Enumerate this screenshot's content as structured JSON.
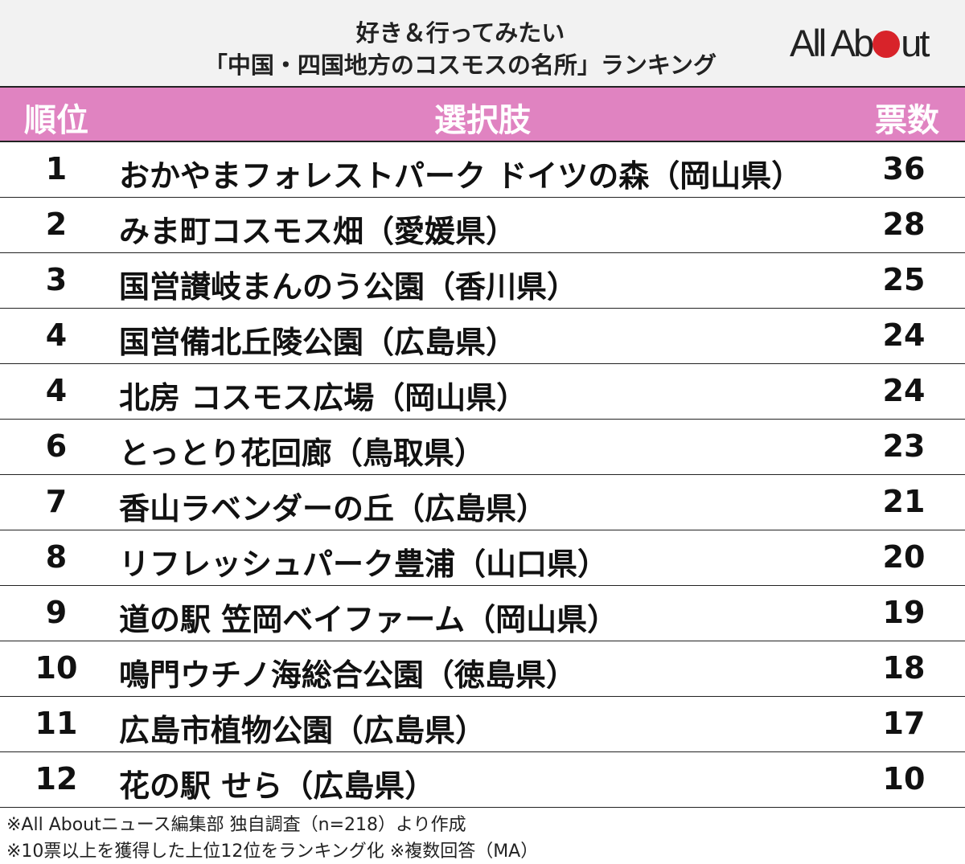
{
  "title": {
    "line1": "好き＆行ってみたい",
    "line2": "「中国・四国地方のコスモスの名所」ランキング"
  },
  "logo": {
    "text": "All About",
    "dot_color": "#d8232a"
  },
  "colors": {
    "header_bg": "#e083c1",
    "title_bg": "#f2f2f2"
  },
  "chart_data": {
    "type": "table",
    "columns": [
      "順位",
      "選択肢",
      "票数"
    ],
    "rows": [
      {
        "rank": "1",
        "name": "おかやまフォレストパーク ドイツの森（岡山県）",
        "votes": "36"
      },
      {
        "rank": "2",
        "name": "みま町コスモス畑（愛媛県）",
        "votes": "28"
      },
      {
        "rank": "3",
        "name": "国営讃岐まんのう公園（香川県）",
        "votes": "25"
      },
      {
        "rank": "4",
        "name": "国営備北丘陵公園（広島県）",
        "votes": "24"
      },
      {
        "rank": "4",
        "name": "北房 コスモス広場（岡山県）",
        "votes": "24"
      },
      {
        "rank": "6",
        "name": "とっとり花回廊（鳥取県）",
        "votes": "23"
      },
      {
        "rank": "7",
        "name": "香山ラベンダーの丘（広島県）",
        "votes": "21"
      },
      {
        "rank": "8",
        "name": "リフレッシュパーク豊浦（山口県）",
        "votes": "20"
      },
      {
        "rank": "9",
        "name": "道の駅 笠岡ベイファーム（岡山県）",
        "votes": "19"
      },
      {
        "rank": "10",
        "name": "鳴門ウチノ海総合公園（徳島県）",
        "votes": "18"
      },
      {
        "rank": "11",
        "name": "広島市植物公園（広島県）",
        "votes": "17"
      },
      {
        "rank": "12",
        "name": "花の駅 せら（広島県）",
        "votes": "10"
      }
    ]
  },
  "notes": [
    "※All Aboutニュース編集部 独自調査（n=218）より作成",
    "※10票以上を獲得した上位12位をランキング化 ※複数回答（MA）"
  ]
}
